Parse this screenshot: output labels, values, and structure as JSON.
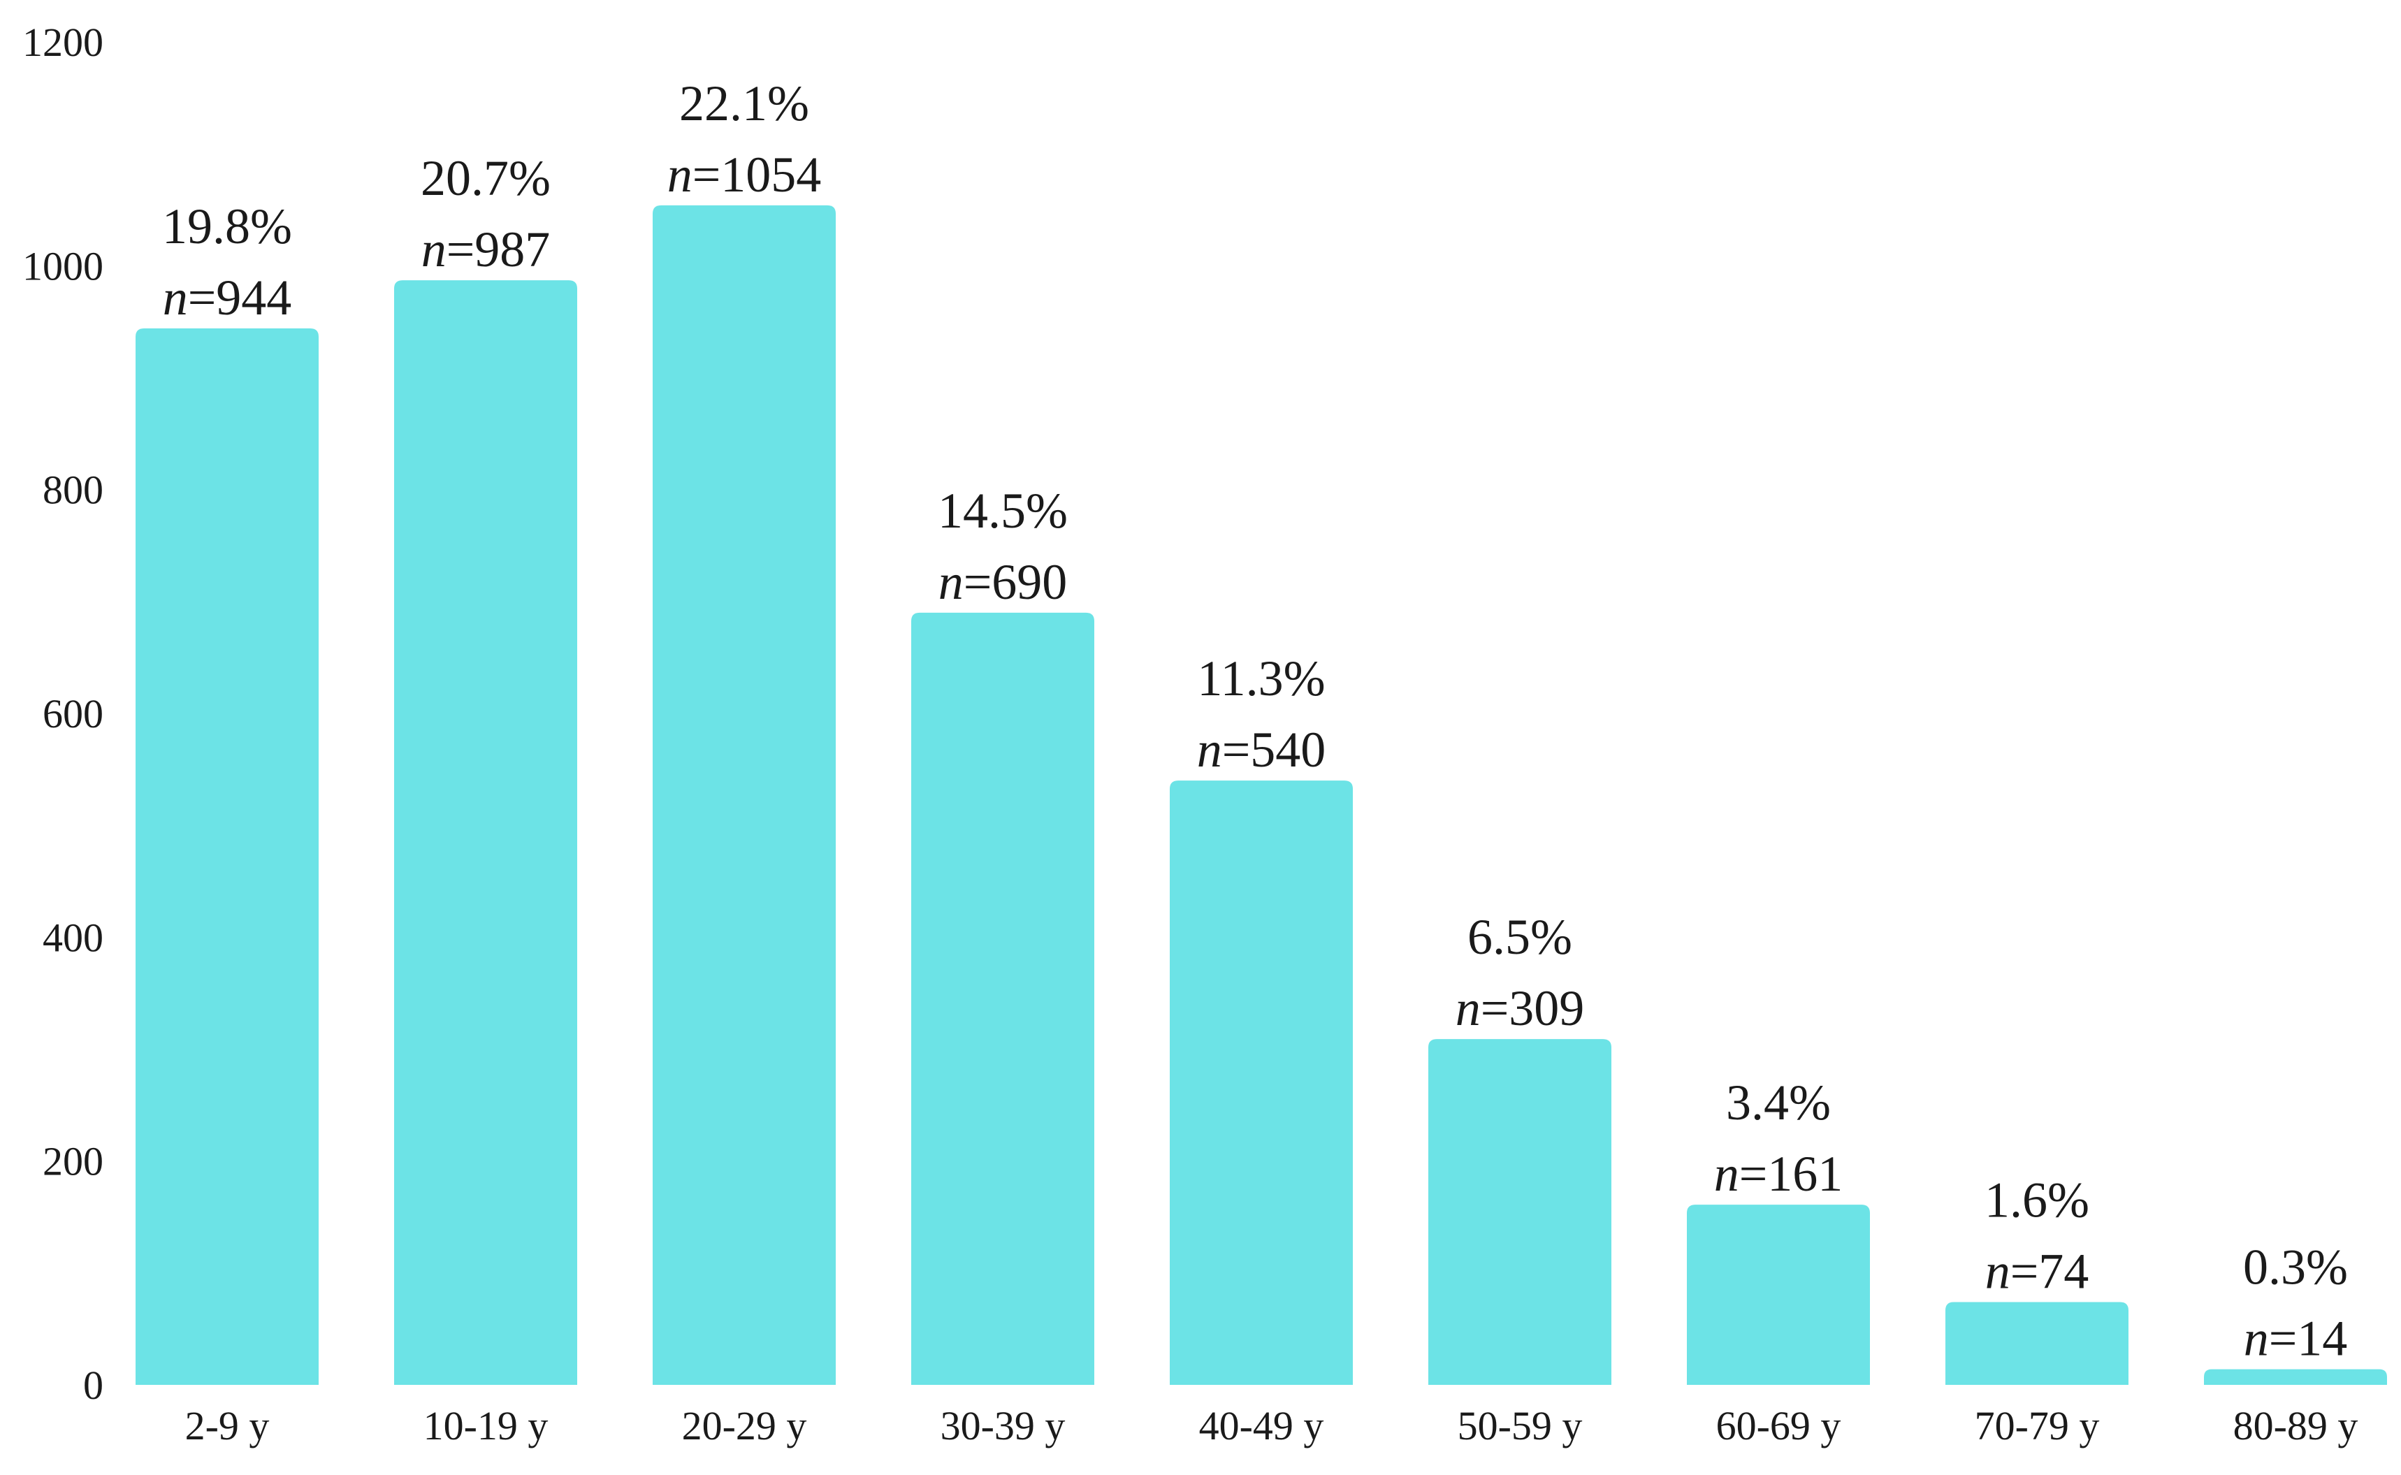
{
  "chart_data": {
    "type": "bar",
    "categories": [
      "2-9 y",
      "10-19 y",
      "20-29 y",
      "30-39 y",
      "40-49 y",
      "50-59 y",
      "60-69 y",
      "70-79 y",
      "80-89 y"
    ],
    "values": [
      944,
      987,
      1054,
      690,
      540,
      309,
      161,
      74,
      14
    ],
    "percent_labels": [
      "19.8%",
      "20.7%",
      "22.1%",
      "14.5%",
      "11.3%",
      "6.5%",
      "3.4%",
      "1.6%",
      "0.3%"
    ],
    "n_prefix": "n",
    "n_suffixes": [
      "=944",
      "=987",
      "=1054",
      "=690",
      "=540",
      "=309",
      "=161",
      "=74",
      "=14"
    ],
    "yticks": [
      "0",
      "200",
      "400",
      "600",
      "800",
      "1000",
      "1200"
    ],
    "ylim": [
      0,
      1200
    ],
    "title": "",
    "xlabel": "",
    "ylabel": "",
    "grid": false,
    "legend": "none",
    "bar_color": "#6ce3e6",
    "text_color": "#1a1a1a"
  }
}
